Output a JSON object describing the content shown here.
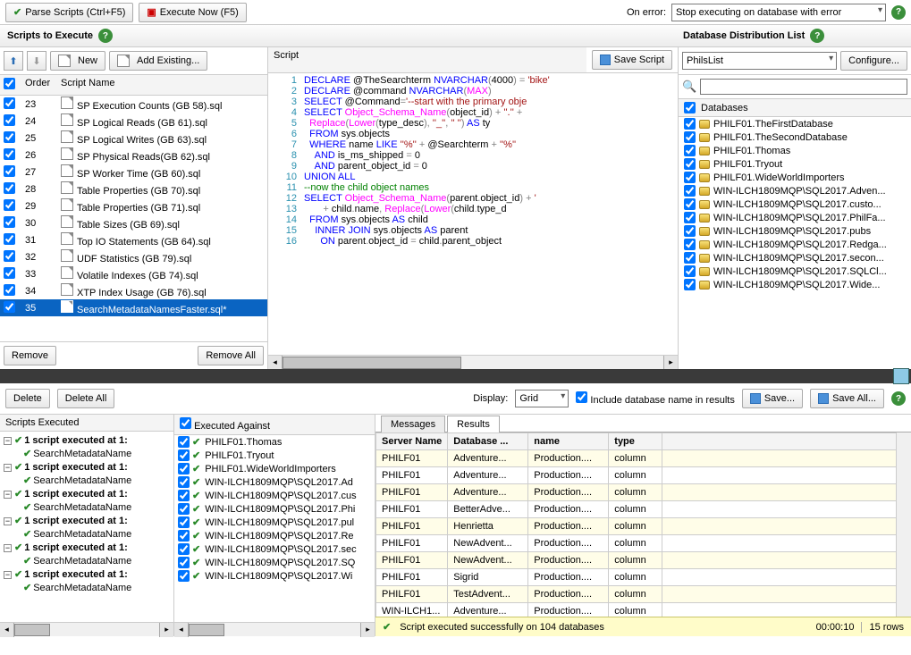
{
  "toolbar": {
    "parse_label": "Parse Scripts (Ctrl+F5)",
    "execute_label": "Execute Now (F5)",
    "on_error_label": "On error:",
    "on_error_value": "Stop executing on database with error"
  },
  "left": {
    "title": "Scripts to Execute",
    "new_label": "New",
    "add_existing_label": "Add Existing...",
    "col_order": "Order",
    "col_name": "Script Name",
    "remove_label": "Remove",
    "remove_all_label": "Remove All",
    "scripts": [
      {
        "order": 23,
        "name": "SP Execution Counts (GB 58).sql",
        "checked": true
      },
      {
        "order": 24,
        "name": "SP Logical Reads (GB 61).sql",
        "checked": true
      },
      {
        "order": 25,
        "name": "SP Logical Writes (GB 63).sql",
        "checked": true
      },
      {
        "order": 26,
        "name": "SP Physical Reads(GB 62).sql",
        "checked": true
      },
      {
        "order": 27,
        "name": "SP Worker Time (GB 60).sql",
        "checked": true
      },
      {
        "order": 28,
        "name": "Table Properties (GB 70).sql",
        "checked": true
      },
      {
        "order": 29,
        "name": "Table Properties (GB 71).sql",
        "checked": true
      },
      {
        "order": 30,
        "name": "Table Sizes (GB 69).sql",
        "checked": true
      },
      {
        "order": 31,
        "name": "Top IO Statements (GB 64).sql",
        "checked": true
      },
      {
        "order": 32,
        "name": "UDF Statistics (GB 79).sql",
        "checked": true
      },
      {
        "order": 33,
        "name": "Volatile Indexes (GB 74).sql",
        "checked": true
      },
      {
        "order": 34,
        "name": "XTP Index Usage (GB 76).sql",
        "checked": true
      },
      {
        "order": 35,
        "name": "SearchMetadataNamesFaster.sql*",
        "checked": true,
        "selected": true
      }
    ]
  },
  "mid": {
    "header": "Script",
    "save_label": "Save Script",
    "code_lines": [
      {
        "n": 1,
        "html": "<span class='kw'>DECLARE</span> @TheSearchterm <span class='kw'>NVARCHAR</span><span class='gr'>(</span>4000<span class='gr'>)</span> <span class='gr'>=</span> <span class='str'>'bike'</span>"
      },
      {
        "n": 2,
        "html": "<span class='kw'>DECLARE</span> @command <span class='kw'>NVARCHAR</span><span class='gr'>(</span><span class='fn'>MAX</span><span class='gr'>)</span>"
      },
      {
        "n": 3,
        "html": "<span class='kw'>SELECT</span> @Command<span class='gr'>=</span><span class='str'>'--start with the primary obje</span>"
      },
      {
        "n": 4,
        "html": "<span class='kw'>SELECT</span> <span class='fn'>Object_Schema_Name</span><span class='gr'>(</span>object_id<span class='gr'>)</span> <span class='gr'>+</span> <span class='str'>''.''</span> <span class='gr'>+</span>"
      },
      {
        "n": 5,
        "html": "  <span class='fn'>Replace</span><span class='gr'>(</span><span class='fn'>Lower</span><span class='gr'>(</span>type_desc<span class='gr'>),</span> <span class='str'>''_''</span><span class='gr'>,</span> <span class='str'>'' ''</span><span class='gr'>)</span> <span class='kw'>AS</span> ty"
      },
      {
        "n": 6,
        "html": "  <span class='kw'>FROM</span> sys<span class='gr'>.</span>objects"
      },
      {
        "n": 7,
        "html": "  <span class='kw'>WHERE</span> name <span class='kw'>LIKE</span> <span class='str'>''%''</span> <span class='gr'>+</span> @Searchterm <span class='gr'>+</span> <span class='str'>''%''</span>"
      },
      {
        "n": 8,
        "html": "    <span class='kw'>AND</span> is_ms_shipped <span class='gr'>=</span> 0"
      },
      {
        "n": 9,
        "html": "    <span class='kw'>AND</span> parent_object_id <span class='gr'>=</span> 0"
      },
      {
        "n": 10,
        "html": "<span class='kw'>UNION ALL</span>"
      },
      {
        "n": 11,
        "html": "<span class='cm'>--now the child object names</span>"
      },
      {
        "n": 12,
        "html": "<span class='kw'>SELECT</span> <span class='fn'>Object_Schema_Name</span><span class='gr'>(</span>parent<span class='gr'>.</span>object_id<span class='gr'>)</span> <span class='gr'>+</span> <span class='str'>'</span>"
      },
      {
        "n": 13,
        "html": "       <span class='gr'>+</span> child<span class='gr'>.</span>name<span class='gr'>,</span> <span class='fn'>Replace</span><span class='gr'>(</span><span class='fn'>Lower</span><span class='gr'>(</span>child<span class='gr'>.</span>type_d"
      },
      {
        "n": 14,
        "html": "  <span class='kw'>FROM</span> sys<span class='gr'>.</span>objects <span class='kw'>AS</span> child"
      },
      {
        "n": 15,
        "html": "    <span class='kw'>INNER JOIN</span> sys<span class='gr'>.</span>objects <span class='kw'>AS</span> parent"
      },
      {
        "n": 16,
        "html": "      <span class='kw'>ON</span> parent<span class='gr'>.</span>object_id <span class='gr'>=</span> child<span class='gr'>.</span>parent_object"
      }
    ]
  },
  "right": {
    "title": "Database Distribution List",
    "list_value": "PhilsList",
    "configure_label": "Configure...",
    "databases_label": "Databases",
    "databases": [
      "PHILF01.TheFirstDatabase",
      "PHILF01.TheSecondDatabase",
      "PHILF01.Thomas",
      "PHILF01.Tryout",
      "PHILF01.WideWorldImporters",
      "WIN-ILCH1809MQP\\SQL2017.Adven...",
      "WIN-ILCH1809MQP\\SQL2017.custo...",
      "WIN-ILCH1809MQP\\SQL2017.PhilFa...",
      "WIN-ILCH1809MQP\\SQL2017.pubs",
      "WIN-ILCH1809MQP\\SQL2017.Redga...",
      "WIN-ILCH1809MQP\\SQL2017.secon...",
      "WIN-ILCH1809MQP\\SQL2017.SQLCl...",
      "WIN-ILCH1809MQP\\SQL2017.Wide..."
    ]
  },
  "results_bar": {
    "delete_label": "Delete",
    "delete_all_label": "Delete All",
    "display_label": "Display:",
    "display_value": "Grid",
    "include_db_label": "Include database name in results",
    "save_label": "Save...",
    "save_all_label": "Save All..."
  },
  "exec_left": {
    "title": "Scripts Executed",
    "groups": [
      "1 script executed at 1:",
      "1 script executed at 1:",
      "1 script executed at 1:",
      "1 script executed at 1:",
      "1 script executed at 1:",
      "1 script executed at 1:"
    ],
    "child": "SearchMetadataName"
  },
  "exec_mid": {
    "title": "Executed Against",
    "items": [
      "PHILF01.Thomas",
      "PHILF01.Tryout",
      "PHILF01.WideWorldImporters",
      "WIN-ILCH1809MQP\\SQL2017.Ad",
      "WIN-ILCH1809MQP\\SQL2017.cus",
      "WIN-ILCH1809MQP\\SQL2017.Phi",
      "WIN-ILCH1809MQP\\SQL2017.pul",
      "WIN-ILCH1809MQP\\SQL2017.Re",
      "WIN-ILCH1809MQP\\SQL2017.sec",
      "WIN-ILCH1809MQP\\SQL2017.SQ",
      "WIN-ILCH1809MQP\\SQL2017.Wi"
    ]
  },
  "tabs": {
    "messages": "Messages",
    "results": "Results"
  },
  "grid": {
    "columns": [
      "Server Name",
      "Database ...",
      "name",
      "type"
    ],
    "rows": [
      [
        "PHILF01",
        "Adventure...",
        "Production....",
        "column",
        true
      ],
      [
        "PHILF01",
        "Adventure...",
        "Production....",
        "column",
        false
      ],
      [
        "PHILF01",
        "Adventure...",
        "Production....",
        "column",
        true
      ],
      [
        "PHILF01",
        "BetterAdve...",
        "Production....",
        "column",
        false
      ],
      [
        "PHILF01",
        "Henrietta",
        "Production....",
        "column",
        true
      ],
      [
        "PHILF01",
        "NewAdvent...",
        "Production....",
        "column",
        false
      ],
      [
        "PHILF01",
        "NewAdvent...",
        "Production....",
        "column",
        true
      ],
      [
        "PHILF01",
        "Sigrid",
        "Production....",
        "column",
        false
      ],
      [
        "PHILF01",
        "TestAdvent...",
        "Production....",
        "column",
        true
      ],
      [
        "WIN-ILCH1...",
        "Adventure...",
        "Production....",
        "column",
        false
      ]
    ]
  },
  "status": {
    "message": "Script executed successfully on 104 databases",
    "time": "00:00:10",
    "rows": "15 rows"
  },
  "colors": {
    "selection": "#0a64c2",
    "status_bg": "#fffcc9",
    "alt_row": "#fffde8"
  }
}
